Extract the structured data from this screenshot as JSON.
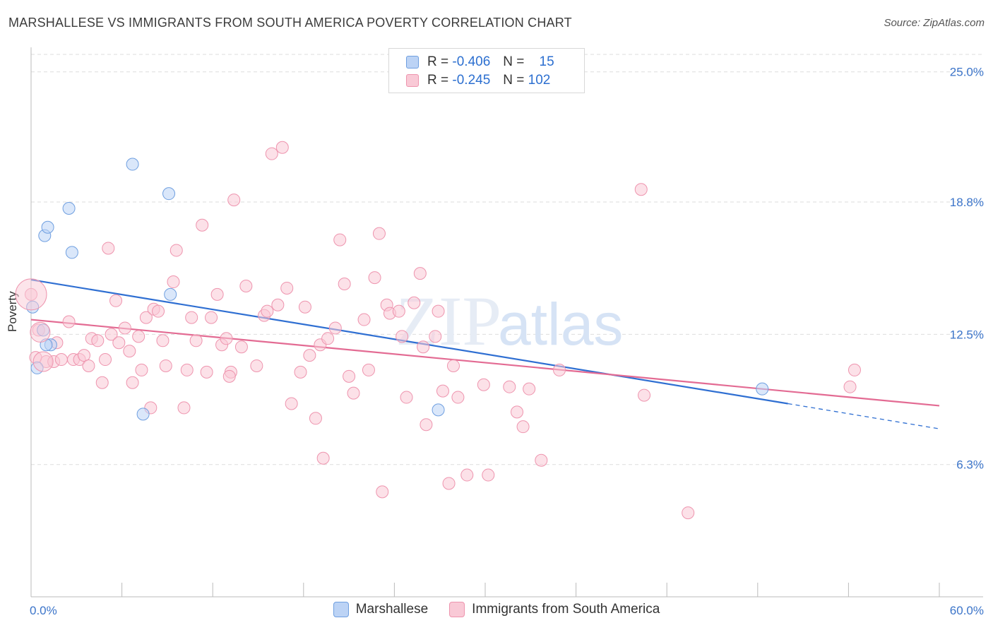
{
  "title": "MARSHALLESE VS IMMIGRANTS FROM SOUTH AMERICA POVERTY CORRELATION CHART",
  "source": "Source: ZipAtlas.com",
  "watermark": {
    "zip": "ZIP",
    "atlas": "atlas"
  },
  "legend": {
    "rows": [
      {
        "r_label": "R =",
        "r_value": "-0.406",
        "n_label": "N =",
        "n_value": "15"
      },
      {
        "r_label": "R =",
        "r_value": "-0.245",
        "n_label": "N =",
        "n_value": "102"
      }
    ]
  },
  "colors": {
    "blue_fill": "#bcd3f5",
    "blue_stroke": "#6f9fe0",
    "blue_line": "#2f6fd2",
    "pink_fill": "#f9c9d6",
    "pink_stroke": "#ee94ae",
    "pink_line": "#e36b93",
    "tick_text": "#3b74c9",
    "grid": "#dddddd"
  },
  "chart_data": {
    "type": "scatter",
    "title": "MARSHALLESE VS IMMIGRANTS FROM SOUTH AMERICA POVERTY CORRELATION CHART",
    "xlabel": "",
    "ylabel": "Poverty",
    "xlim": [
      0,
      60
    ],
    "ylim": [
      0,
      26
    ],
    "x_tick_labels": [
      "0.0%",
      "60.0%"
    ],
    "y_ticks": [
      6.3,
      12.5,
      18.8,
      25.0
    ],
    "y_tick_labels": [
      "6.3%",
      "12.5%",
      "18.8%",
      "25.0%"
    ],
    "grid": "horizontal dashed",
    "legend_position": "top-center",
    "series": [
      {
        "name": "Marshallese",
        "color": "#bcd3f5",
        "points": [
          [
            0.1,
            13.8
          ],
          [
            0.4,
            10.9
          ],
          [
            0.8,
            12.7
          ],
          [
            0.9,
            17.2
          ],
          [
            1.1,
            17.6
          ],
          [
            1.3,
            12.0
          ],
          [
            2.5,
            18.5
          ],
          [
            2.7,
            16.4
          ],
          [
            6.7,
            20.6
          ],
          [
            7.4,
            8.7
          ],
          [
            9.1,
            19.2
          ],
          [
            9.2,
            14.4
          ],
          [
            26.9,
            8.9
          ],
          [
            48.3,
            9.9
          ],
          [
            1.0,
            12.0
          ]
        ],
        "trend": {
          "x1": 0,
          "y1": 15.1,
          "x2": 50.0,
          "y2": 9.2,
          "dash_x2": 60.0,
          "dash_y2": 8.0
        }
      },
      {
        "name": "Immigrants from South America",
        "color": "#f9c9d6",
        "points": [
          [
            0.0,
            14.4
          ],
          [
            0.5,
            12.7
          ],
          [
            1.0,
            11.2
          ],
          [
            1.5,
            11.2
          ],
          [
            1.7,
            12.1
          ],
          [
            2.0,
            11.3
          ],
          [
            2.5,
            13.1
          ],
          [
            2.8,
            11.3
          ],
          [
            3.2,
            11.3
          ],
          [
            3.5,
            11.5
          ],
          [
            3.8,
            11.0
          ],
          [
            4.0,
            12.3
          ],
          [
            4.4,
            12.2
          ],
          [
            4.7,
            10.2
          ],
          [
            5.1,
            16.6
          ],
          [
            5.3,
            12.5
          ],
          [
            5.6,
            14.1
          ],
          [
            5.8,
            12.1
          ],
          [
            6.2,
            12.8
          ],
          [
            6.5,
            11.7
          ],
          [
            6.7,
            10.2
          ],
          [
            7.1,
            12.4
          ],
          [
            7.3,
            10.8
          ],
          [
            7.6,
            13.3
          ],
          [
            7.9,
            9.0
          ],
          [
            8.1,
            13.7
          ],
          [
            8.4,
            13.6
          ],
          [
            8.7,
            12.2
          ],
          [
            8.9,
            11.0
          ],
          [
            9.4,
            15.0
          ],
          [
            9.6,
            16.5
          ],
          [
            10.1,
            9.0
          ],
          [
            10.3,
            10.8
          ],
          [
            10.6,
            13.3
          ],
          [
            10.9,
            12.2
          ],
          [
            11.3,
            17.7
          ],
          [
            11.6,
            10.7
          ],
          [
            11.9,
            13.3
          ],
          [
            12.3,
            14.4
          ],
          [
            12.6,
            12.0
          ],
          [
            12.9,
            12.3
          ],
          [
            13.2,
            10.7
          ],
          [
            13.4,
            18.9
          ],
          [
            13.9,
            11.9
          ],
          [
            14.2,
            14.8
          ],
          [
            14.9,
            11.0
          ],
          [
            15.4,
            13.4
          ],
          [
            15.6,
            13.6
          ],
          [
            15.9,
            21.1
          ],
          [
            16.3,
            13.9
          ],
          [
            16.6,
            21.4
          ],
          [
            16.9,
            14.7
          ],
          [
            17.2,
            9.2
          ],
          [
            17.8,
            10.7
          ],
          [
            18.1,
            13.8
          ],
          [
            18.4,
            11.5
          ],
          [
            18.8,
            8.5
          ],
          [
            19.1,
            12.0
          ],
          [
            19.3,
            6.6
          ],
          [
            19.6,
            12.3
          ],
          [
            20.1,
            12.8
          ],
          [
            20.4,
            17.0
          ],
          [
            20.7,
            14.9
          ],
          [
            21.3,
            9.7
          ],
          [
            22.0,
            13.2
          ],
          [
            22.3,
            10.8
          ],
          [
            22.7,
            15.2
          ],
          [
            23.0,
            17.3
          ],
          [
            23.2,
            5.0
          ],
          [
            23.5,
            13.9
          ],
          [
            23.7,
            13.5
          ],
          [
            24.3,
            13.6
          ],
          [
            24.5,
            12.4
          ],
          [
            24.8,
            9.5
          ],
          [
            25.3,
            14.0
          ],
          [
            25.7,
            15.4
          ],
          [
            25.9,
            11.9
          ],
          [
            26.1,
            8.2
          ],
          [
            26.7,
            12.4
          ],
          [
            26.9,
            13.6
          ],
          [
            27.2,
            9.8
          ],
          [
            27.6,
            5.4
          ],
          [
            27.9,
            11.0
          ],
          [
            28.2,
            9.5
          ],
          [
            28.8,
            5.8
          ],
          [
            29.9,
            10.1
          ],
          [
            30.2,
            5.8
          ],
          [
            31.6,
            10.0
          ],
          [
            32.1,
            8.8
          ],
          [
            32.5,
            8.1
          ],
          [
            32.9,
            9.9
          ],
          [
            33.7,
            6.5
          ],
          [
            34.9,
            10.8
          ],
          [
            40.3,
            19.4
          ],
          [
            40.5,
            9.6
          ],
          [
            43.4,
            4.0
          ],
          [
            54.1,
            10.0
          ],
          [
            54.4,
            10.8
          ],
          [
            0.3,
            11.4
          ],
          [
            4.9,
            11.3
          ],
          [
            13.1,
            10.5
          ],
          [
            21.0,
            10.5
          ]
        ],
        "trend": {
          "x1": 0,
          "y1": 13.2,
          "x2": 60.0,
          "y2": 9.1
        }
      }
    ]
  },
  "bottom_legend": [
    {
      "label": "Marshallese"
    },
    {
      "label": "Immigrants from South America"
    }
  ]
}
